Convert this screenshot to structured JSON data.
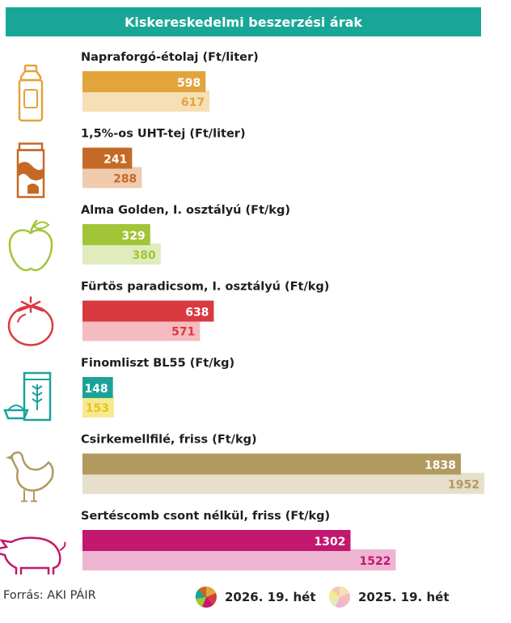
{
  "title": "Kiskereskedelmi beszerzési árak",
  "source": "Forrás: AKI PÁIR",
  "legend": {
    "current": "2026. 19. hét",
    "previous": "2025. 19. hét"
  },
  "chart_data": {
    "type": "bar",
    "orientation": "horizontal",
    "xlim": [
      0,
      1952
    ],
    "series": [
      {
        "name": "2026. 19. hét",
        "values": [
          598,
          241,
          329,
          638,
          148,
          1838,
          1302
        ]
      },
      {
        "name": "2025. 19. hét",
        "values": [
          617,
          288,
          380,
          571,
          153,
          1952,
          1522
        ]
      }
    ],
    "categories": [
      "Napraforgó-étolaj (Ft/liter)",
      "1,5%-os UHT-tej (Ft/liter)",
      "Alma Golden, I. osztályú (Ft/kg)",
      "Fürtös paradicsom, I. osztályú (Ft/kg)",
      "Finomliszt BL55 (Ft/kg)",
      "Csirkemellfilé, friss (Ft/kg)",
      "Sertéscomb csont nélkül, friss (Ft/kg)"
    ],
    "icons": [
      "oil-bottle-icon",
      "milk-carton-icon",
      "apple-icon",
      "tomato-icon",
      "flour-bag-icon",
      "chicken-icon",
      "pig-icon"
    ],
    "colors_current": [
      "#e3a43b",
      "#c56a26",
      "#a1c536",
      "#d93a3f",
      "#1ba39a",
      "#b19a5f",
      "#c2186f"
    ],
    "colors_previous": [
      "#f6dfb4",
      "#f0cbad",
      "#e0ecbb",
      "#f4bcc0",
      "#f6e98f",
      "#e7dfcb",
      "#eeb5d2"
    ],
    "label_colors_previous": [
      "#e3a43b",
      "#c56a26",
      "#a1c536",
      "#d93a3f",
      "#e6c21a",
      "#b19a5f",
      "#c2186f"
    ]
  }
}
